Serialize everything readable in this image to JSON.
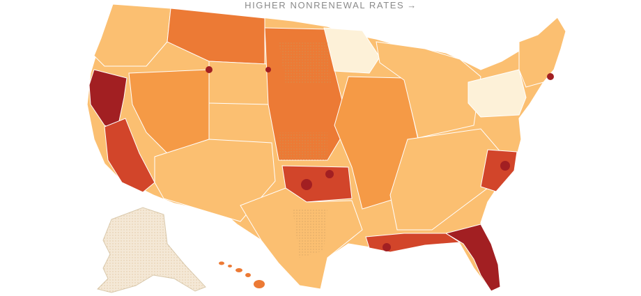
{
  "legend": {
    "caption": "HIGHER NONRENEWAL RATES",
    "arrow": "→",
    "arrow_icon": "arrow-right-icon"
  },
  "palette": {
    "lowest": "#fdf1d8",
    "low": "#fde0a8",
    "medium": "#fbbf71",
    "high": "#f59a46",
    "higher": "#ec7a35",
    "highest": "#d2452a",
    "extreme": "#a21f22",
    "no_data": "#f4e8d6",
    "border": "#ffffff"
  },
  "regions": [
    {
      "name": "alaska",
      "level": "no_data"
    },
    {
      "name": "hawaii",
      "level": "higher"
    },
    {
      "name": "pacific-northwest",
      "level": "medium"
    },
    {
      "name": "northern-california",
      "level": "extreme"
    },
    {
      "name": "southern-california",
      "level": "highest"
    },
    {
      "name": "great-basin",
      "level": "high"
    },
    {
      "name": "southwest",
      "level": "medium"
    },
    {
      "name": "northern-rockies",
      "level": "higher"
    },
    {
      "name": "wyoming",
      "level": "medium"
    },
    {
      "name": "great-plains",
      "level": "higher"
    },
    {
      "name": "minnesota",
      "level": "lowest"
    },
    {
      "name": "great-lakes",
      "level": "medium"
    },
    {
      "name": "new-york",
      "level": "lowest"
    },
    {
      "name": "new-england",
      "level": "medium"
    },
    {
      "name": "oklahoma",
      "level": "highest"
    },
    {
      "name": "texas",
      "level": "medium"
    },
    {
      "name": "mississippi-valley",
      "level": "high"
    },
    {
      "name": "southeast",
      "level": "medium"
    },
    {
      "name": "carolinas-coast",
      "level": "highest"
    },
    {
      "name": "gulf-coast",
      "level": "highest"
    },
    {
      "name": "florida",
      "level": "extreme"
    }
  ]
}
